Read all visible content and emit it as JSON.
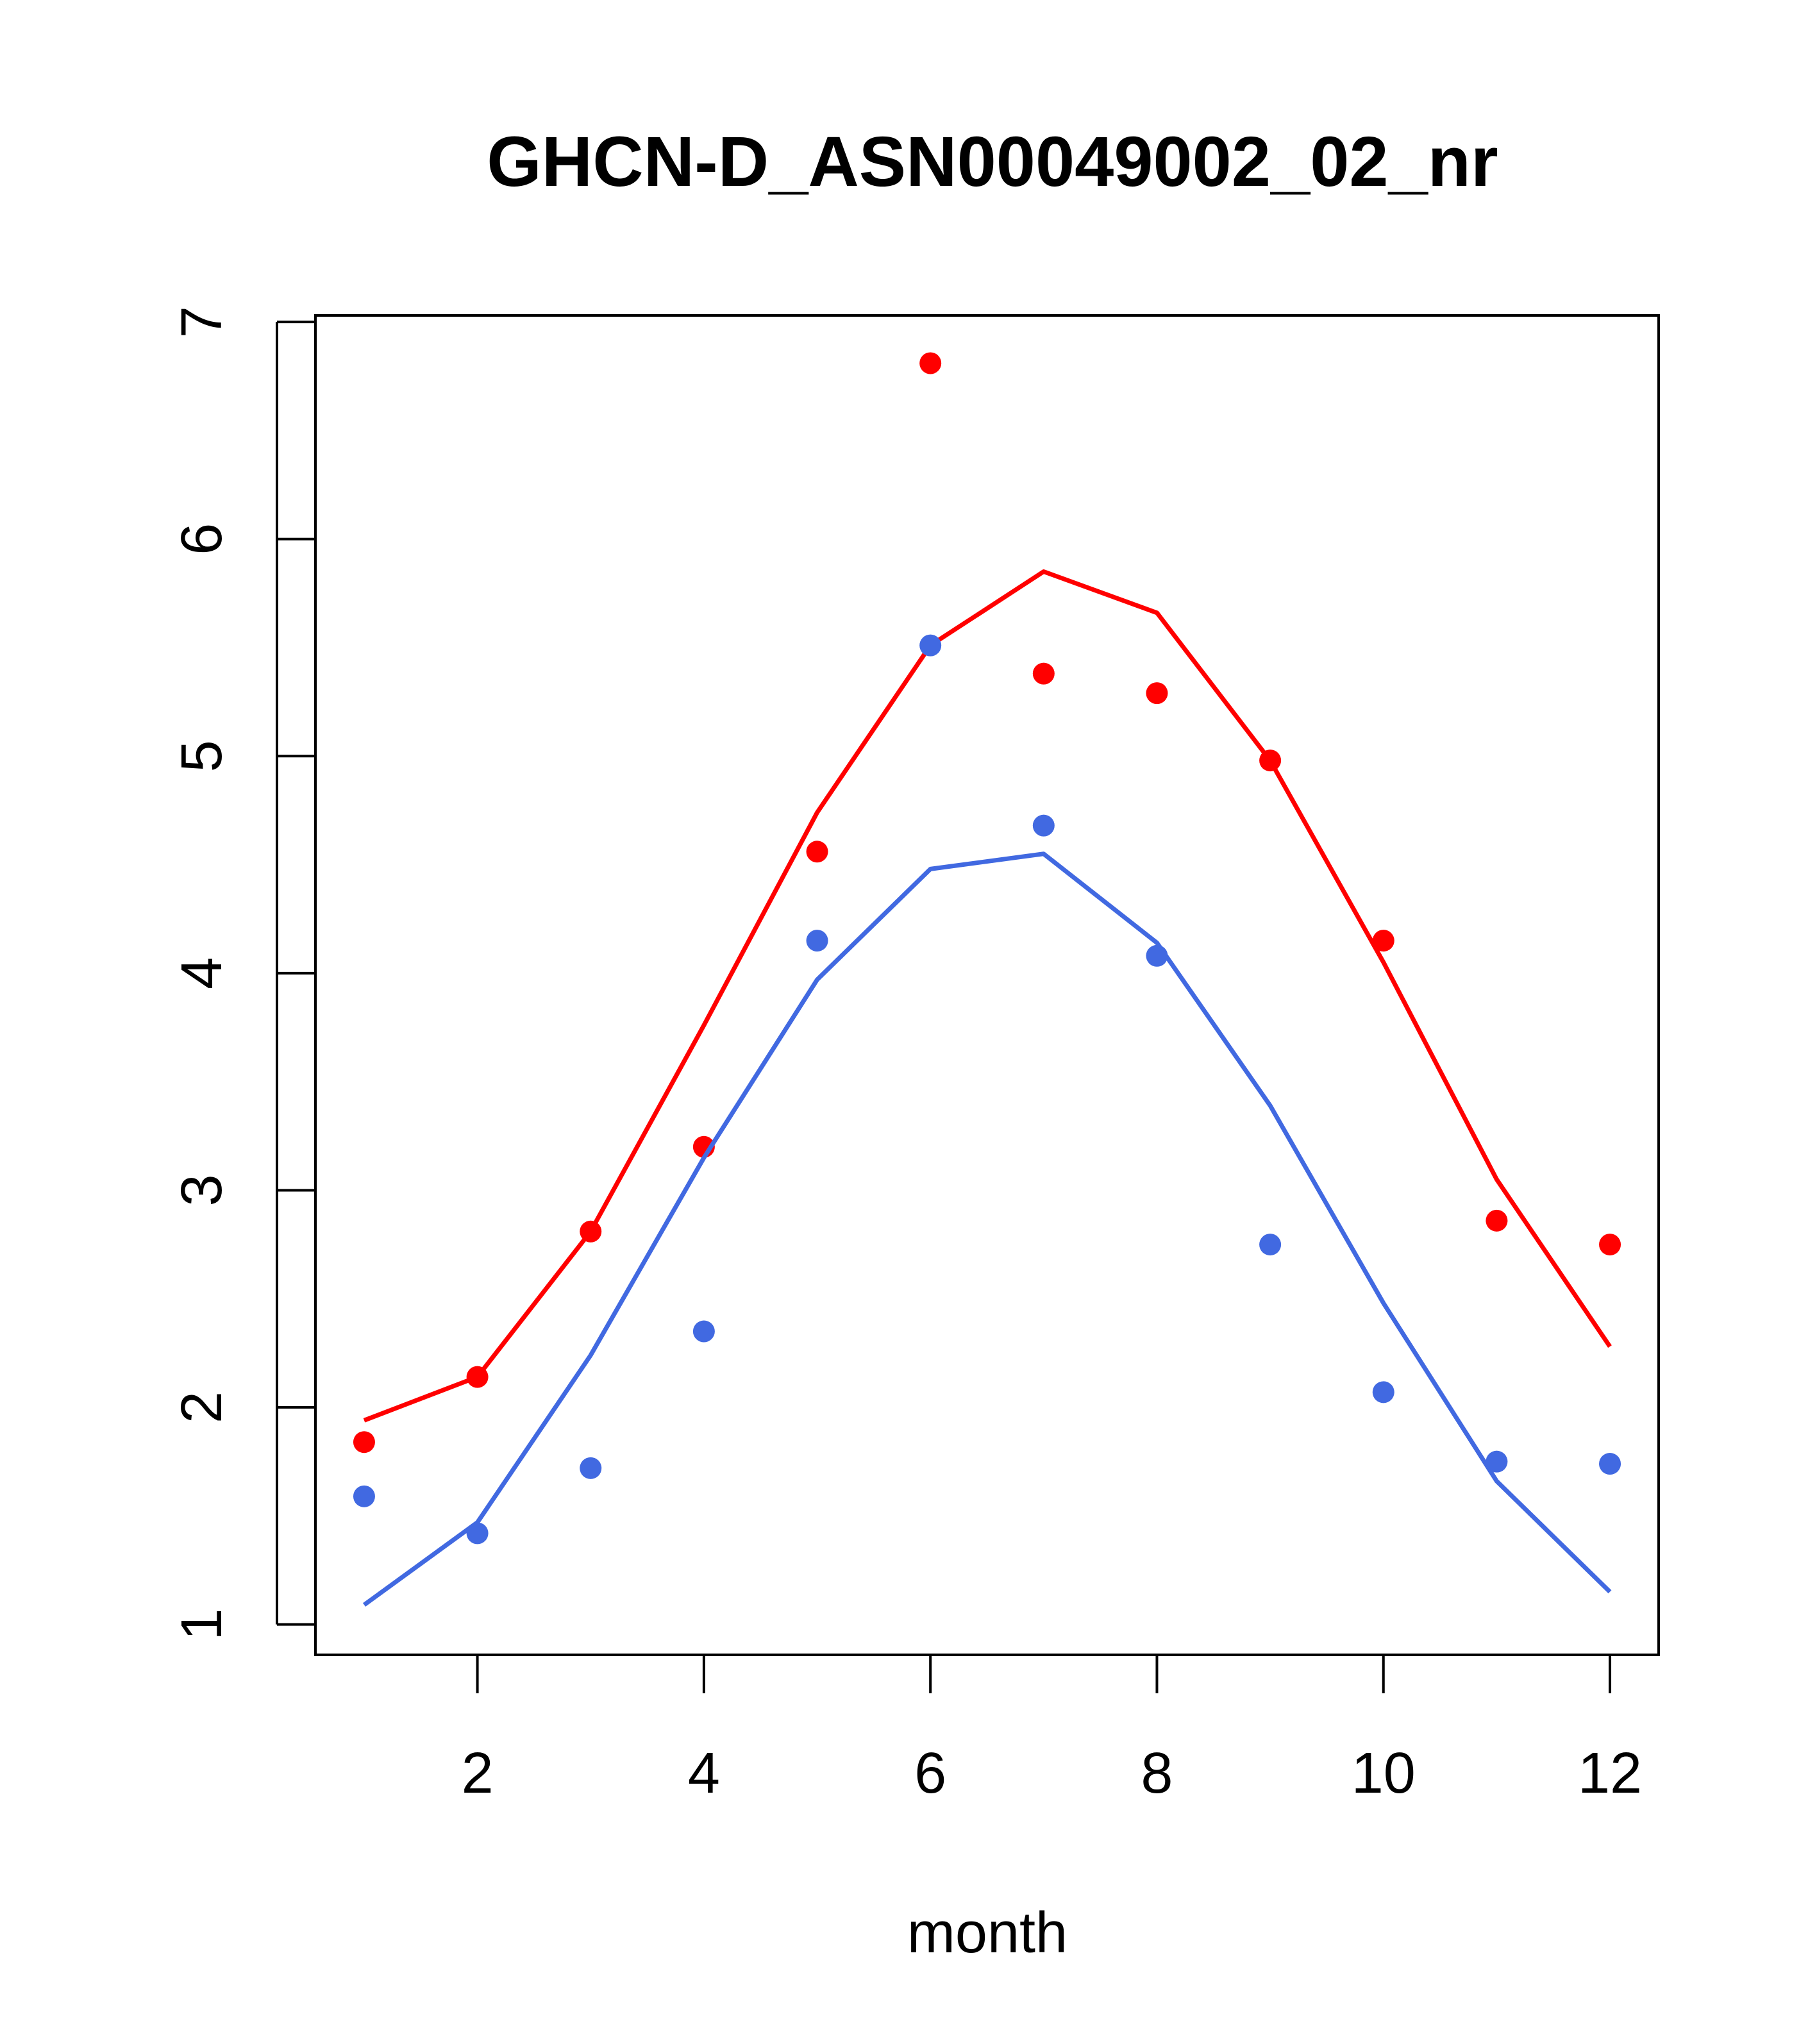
{
  "chart_data": {
    "type": "line",
    "title": "GHCN-D_ASN00049002_02_nr",
    "xlabel": "month",
    "ylabel": "",
    "xlim": [
      0.57,
      12.43
    ],
    "ylim": [
      0.86,
      7.03
    ],
    "xticks": [
      "2",
      "4",
      "6",
      "8",
      "10",
      "12"
    ],
    "yticks": [
      "1",
      "2",
      "3",
      "4",
      "5",
      "6",
      "7"
    ],
    "x": [
      1,
      2,
      3,
      4,
      5,
      6,
      7,
      8,
      9,
      10,
      11,
      12
    ],
    "series": [
      {
        "color": "#ff0000",
        "points": [
          1.84,
          2.14,
          2.81,
          3.2,
          4.56,
          6.81,
          5.38,
          5.29,
          4.98,
          4.15,
          2.86,
          2.75
        ],
        "line": [
          1.94,
          2.14,
          2.81,
          3.76,
          4.74,
          5.51,
          5.85,
          5.66,
          4.98,
          4.05,
          3.05,
          2.28
        ]
      },
      {
        "color": "#4169e1",
        "points": [
          1.59,
          1.42,
          1.72,
          2.35,
          4.15,
          5.51,
          4.68,
          4.08,
          2.75,
          2.07,
          1.75,
          1.74
        ],
        "line": [
          1.09,
          1.47,
          2.24,
          3.15,
          3.97,
          4.48,
          4.55,
          4.14,
          3.39,
          2.48,
          1.66,
          1.15
        ]
      }
    ],
    "grid": false,
    "legend": "none"
  }
}
